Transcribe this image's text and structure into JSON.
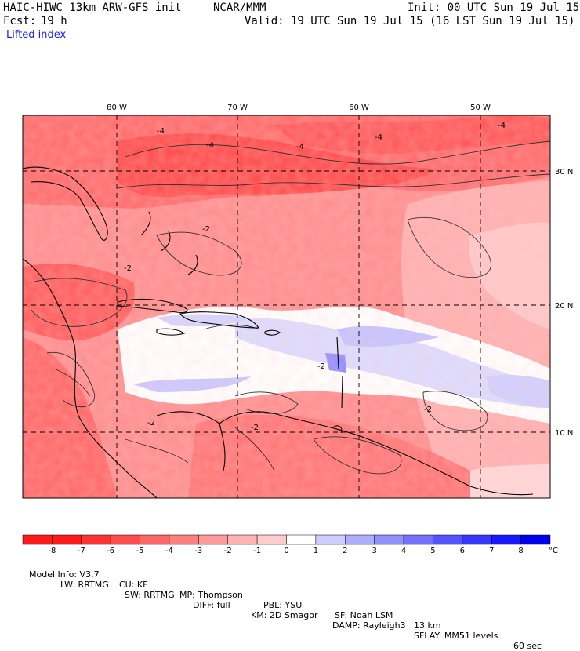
{
  "header": {
    "model_title": "HAIC-HIWC 13km ARW-GFS init",
    "center": "NCAR/MMM",
    "init": "Init: 00 UTC Sun 19 Jul 15",
    "fcst_label": "Fcst:",
    "fcst_value": "19 h",
    "valid": "Valid: 19 UTC Sun 19 Jul 15 (16 LST Sun 19 Jul 15)",
    "field": "Lifted index"
  },
  "grid": {
    "lon_labels": [
      "80 W",
      "70 W",
      "60 W",
      "50 W"
    ],
    "lat_labels": [
      "30 N",
      "20 N",
      "10 N"
    ],
    "contour_labels": [
      "-4",
      "-4",
      "-4",
      "-4",
      "-4",
      "-2",
      "-2",
      "-2",
      "-2",
      "-2",
      "-2"
    ]
  },
  "colorbar": {
    "ticks": [
      "-8",
      "-7",
      "-6",
      "-5",
      "-4",
      "-3",
      "-2",
      "-1",
      "0",
      "1",
      "2",
      "3",
      "4",
      "5",
      "6",
      "7",
      "8"
    ],
    "unit": "°C",
    "colors": [
      "#ff1a1a",
      "#ff3333",
      "#ff4c4c",
      "#ff6666",
      "#ff7f7f",
      "#ff9999",
      "#ffb2b2",
      "#ffcccc",
      "#ffffff",
      "#ccccff",
      "#aeaeff",
      "#9090ff",
      "#7272ff",
      "#5454ff",
      "#3636ff",
      "#1818ff",
      "#0000ee"
    ]
  },
  "footer": {
    "line1": [
      "Model Info: V3.7",
      "CU: KF",
      "MP: Thompson",
      "PBL: YSU",
      "SF: Noah LSM",
      "13 km",
      "51 levels",
      "60 sec"
    ],
    "line2": [
      "LW: RRTMG",
      "SW: RRTMG",
      "DIFF: full",
      "KM: 2D Smagor",
      "DAMP: Rayleigh3",
      "SFLAY: MM5"
    ]
  }
}
